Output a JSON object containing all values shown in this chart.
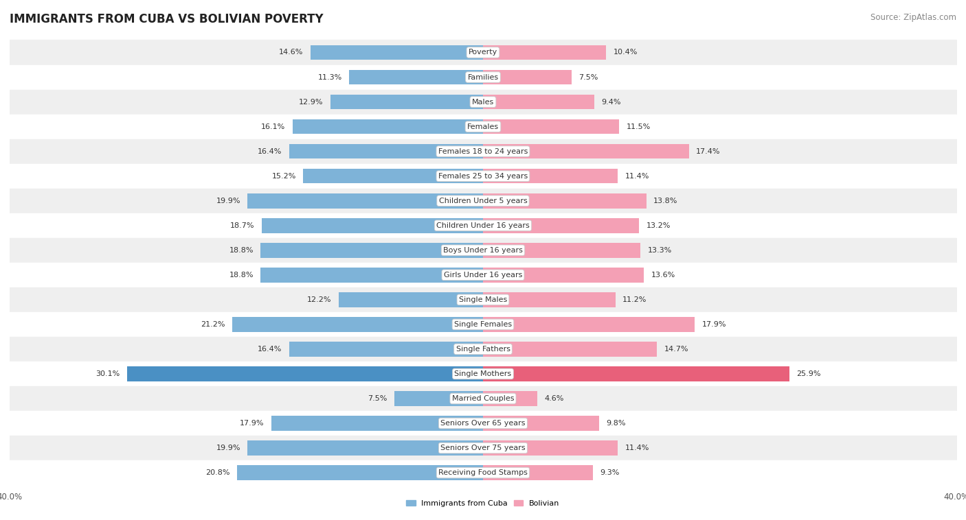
{
  "title": "IMMIGRANTS FROM CUBA VS BOLIVIAN POVERTY",
  "source": "Source: ZipAtlas.com",
  "categories": [
    "Poverty",
    "Families",
    "Males",
    "Females",
    "Females 18 to 24 years",
    "Females 25 to 34 years",
    "Children Under 5 years",
    "Children Under 16 years",
    "Boys Under 16 years",
    "Girls Under 16 years",
    "Single Males",
    "Single Females",
    "Single Fathers",
    "Single Mothers",
    "Married Couples",
    "Seniors Over 65 years",
    "Seniors Over 75 years",
    "Receiving Food Stamps"
  ],
  "cuba_values": [
    14.6,
    11.3,
    12.9,
    16.1,
    16.4,
    15.2,
    19.9,
    18.7,
    18.8,
    18.8,
    12.2,
    21.2,
    16.4,
    30.1,
    7.5,
    17.9,
    19.9,
    20.8
  ],
  "bolivian_values": [
    10.4,
    7.5,
    9.4,
    11.5,
    17.4,
    11.4,
    13.8,
    13.2,
    13.3,
    13.6,
    11.2,
    17.9,
    14.7,
    25.9,
    4.6,
    9.8,
    11.4,
    9.3
  ],
  "cuba_color": "#7eb3d8",
  "bolivian_color": "#f4a0b5",
  "cuba_highlight_color": "#4a90c4",
  "bolivian_highlight_color": "#e8607a",
  "row_bg_light": "#efefef",
  "row_bg_white": "#ffffff",
  "axis_limit": 40.0,
  "bar_height": 0.6,
  "legend_cuba": "Immigrants from Cuba",
  "legend_bolivian": "Bolivian",
  "title_fontsize": 12,
  "source_fontsize": 8.5,
  "label_fontsize": 8,
  "axis_label_fontsize": 8.5
}
